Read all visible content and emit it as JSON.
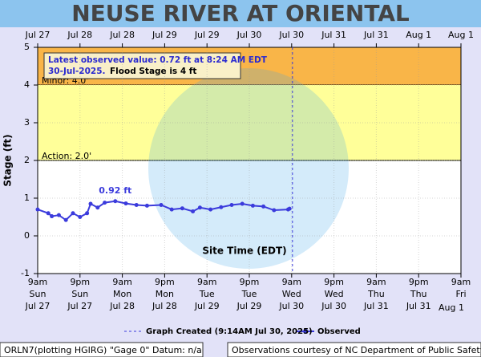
{
  "chart_data": {
    "type": "line",
    "title": "NEUSE RIVER AT ORIENTAL",
    "y_label": "Stage (ft)",
    "x_label": "Site Time (EDT)",
    "xlim": [
      "Jul 27 09:00",
      "Aug 1 09:00"
    ],
    "xticks": [
      {
        "value": "Jul 27 09:00",
        "label": [
          "9am",
          "Sun",
          "Jul 27"
        ]
      },
      {
        "value": "Jul 27 21:00",
        "label": [
          "9pm",
          "Sun",
          "Jul 27"
        ]
      },
      {
        "value": "Jul 28 09:00",
        "label": [
          "9am",
          "Mon",
          "Jul 28"
        ]
      },
      {
        "value": "Jul 28 21:00",
        "label": [
          "9pm",
          "Mon",
          "Jul 28"
        ]
      },
      {
        "value": "Jul 29 09:00",
        "label": [
          "9am",
          "Tue",
          "Jul 29"
        ]
      },
      {
        "value": "Jul 29 21:00",
        "label": [
          "9pm",
          "Tue",
          "Jul 29"
        ]
      },
      {
        "value": "Jul 30 09:00",
        "label": [
          "9am",
          "Wed",
          "Jul 30"
        ]
      },
      {
        "value": "Jul 30 21:00",
        "label": [
          "9pm",
          "Wed",
          "Jul 30"
        ]
      },
      {
        "value": "Jul 31 09:00",
        "label": [
          "9am",
          "Thu",
          "Jul 31"
        ]
      },
      {
        "value": "Jul 31 21:00",
        "label": [
          "9pm",
          "Thu",
          "Jul 31"
        ]
      },
      {
        "value": "Aug 1 09:00",
        "label": [
          "9am",
          "Fri",
          "Aug 1"
        ]
      }
    ],
    "top_tick_labels": [
      "Jul 27",
      "Jul 28",
      "Jul 28",
      "Jul 29",
      "Jul 29",
      "Jul 30",
      "Jul 30",
      "Jul 31",
      "Jul 31",
      "Aug 1",
      "Aug 1"
    ],
    "ylim": [
      -1,
      5
    ],
    "yticks": [
      -1,
      0,
      1,
      2,
      3,
      4,
      5
    ],
    "grid": true,
    "flood_categories": [
      {
        "label": "Minor: 4.0'",
        "value": 4,
        "color": "#f9b548"
      },
      {
        "label": "Action: 2.0'",
        "value": 2,
        "color": "#ffff99"
      }
    ],
    "x": [
      "Jul 27 09:00",
      "Jul 27 12:00",
      "Jul 27 13:00",
      "Jul 27 15:00",
      "Jul 27 17:00",
      "Jul 27 19:00",
      "Jul 27 21:00",
      "Jul 27 23:00",
      "Jul 28 00:00",
      "Jul 28 02:00",
      "Jul 28 04:00",
      "Jul 28 07:00",
      "Jul 28 10:00",
      "Jul 28 13:00",
      "Jul 28 16:00",
      "Jul 28 20:00",
      "Jul 28 23:00",
      "Jul 29 02:00",
      "Jul 29 05:00",
      "Jul 29 07:00",
      "Jul 29 10:00",
      "Jul 29 13:00",
      "Jul 29 16:00",
      "Jul 29 19:00",
      "Jul 29 22:00",
      "Jul 30 01:00",
      "Jul 30 04:00",
      "Jul 30 08:00",
      "Jul 30 08:24"
    ],
    "series": [
      {
        "name": "Observed",
        "color": "#3b3bdc",
        "values": [
          0.7,
          0.6,
          0.52,
          0.55,
          0.42,
          0.6,
          0.5,
          0.6,
          0.85,
          0.75,
          0.88,
          0.92,
          0.86,
          0.82,
          0.8,
          0.82,
          0.7,
          0.73,
          0.65,
          0.75,
          0.7,
          0.76,
          0.82,
          0.85,
          0.8,
          0.78,
          0.68,
          0.7,
          0.72
        ]
      }
    ],
    "peak_label": "0.92 ft",
    "created": {
      "x": "Jul 30 09:14",
      "name": "Graph Created (9:14AM Jul 30, 2025)",
      "color": "#3b3bdc"
    },
    "info_box": [
      "Latest observed value: 0.72 ft at 8:24 AM EDT",
      "30-Jul-2025.",
      "Flood Stage is 4 ft"
    ],
    "footer_left": "ORLN7(plotting HGIRG) \"Gage 0\" Datum: n/a",
    "footer_right": "Observations courtesy of NC Department of Public Safety"
  }
}
